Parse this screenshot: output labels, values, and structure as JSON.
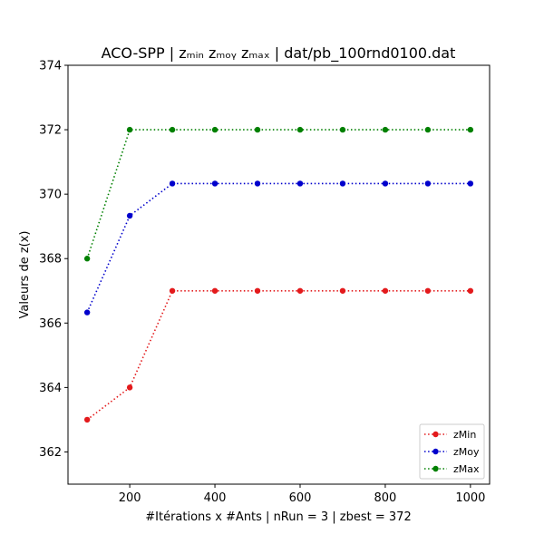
{
  "chart_data": {
    "type": "line",
    "title": "ACO-SPP | zₘᵢₙ  zₘₒᵧ  zₘₐₓ | dat/pb_100rnd0100.dat",
    "xlabel": "#Itérations x #Ants | nRun = 3 | zbest = 372",
    "ylabel": "Valeurs de z(x)",
    "xlim": [
      55,
      1045
    ],
    "ylim": [
      361,
      374
    ],
    "xticks": [
      200,
      400,
      600,
      800,
      1000
    ],
    "yticks": [
      362,
      364,
      366,
      368,
      370,
      372,
      374
    ],
    "x": [
      100,
      200,
      300,
      400,
      500,
      600,
      700,
      800,
      900,
      1000
    ],
    "series": [
      {
        "name": "zMin",
        "color": "#e31a1c",
        "values": [
          363,
          364,
          367,
          367,
          367,
          367,
          367,
          367,
          367,
          367
        ]
      },
      {
        "name": "zMoy",
        "color": "#0000cc",
        "values": [
          366.33,
          369.33,
          370.33,
          370.33,
          370.33,
          370.33,
          370.33,
          370.33,
          370.33,
          370.33
        ]
      },
      {
        "name": "zMax",
        "color": "#008000",
        "values": [
          368,
          372,
          372,
          372,
          372,
          372,
          372,
          372,
          372,
          372
        ]
      }
    ],
    "grid": false,
    "legend_position": "bottom-right"
  }
}
